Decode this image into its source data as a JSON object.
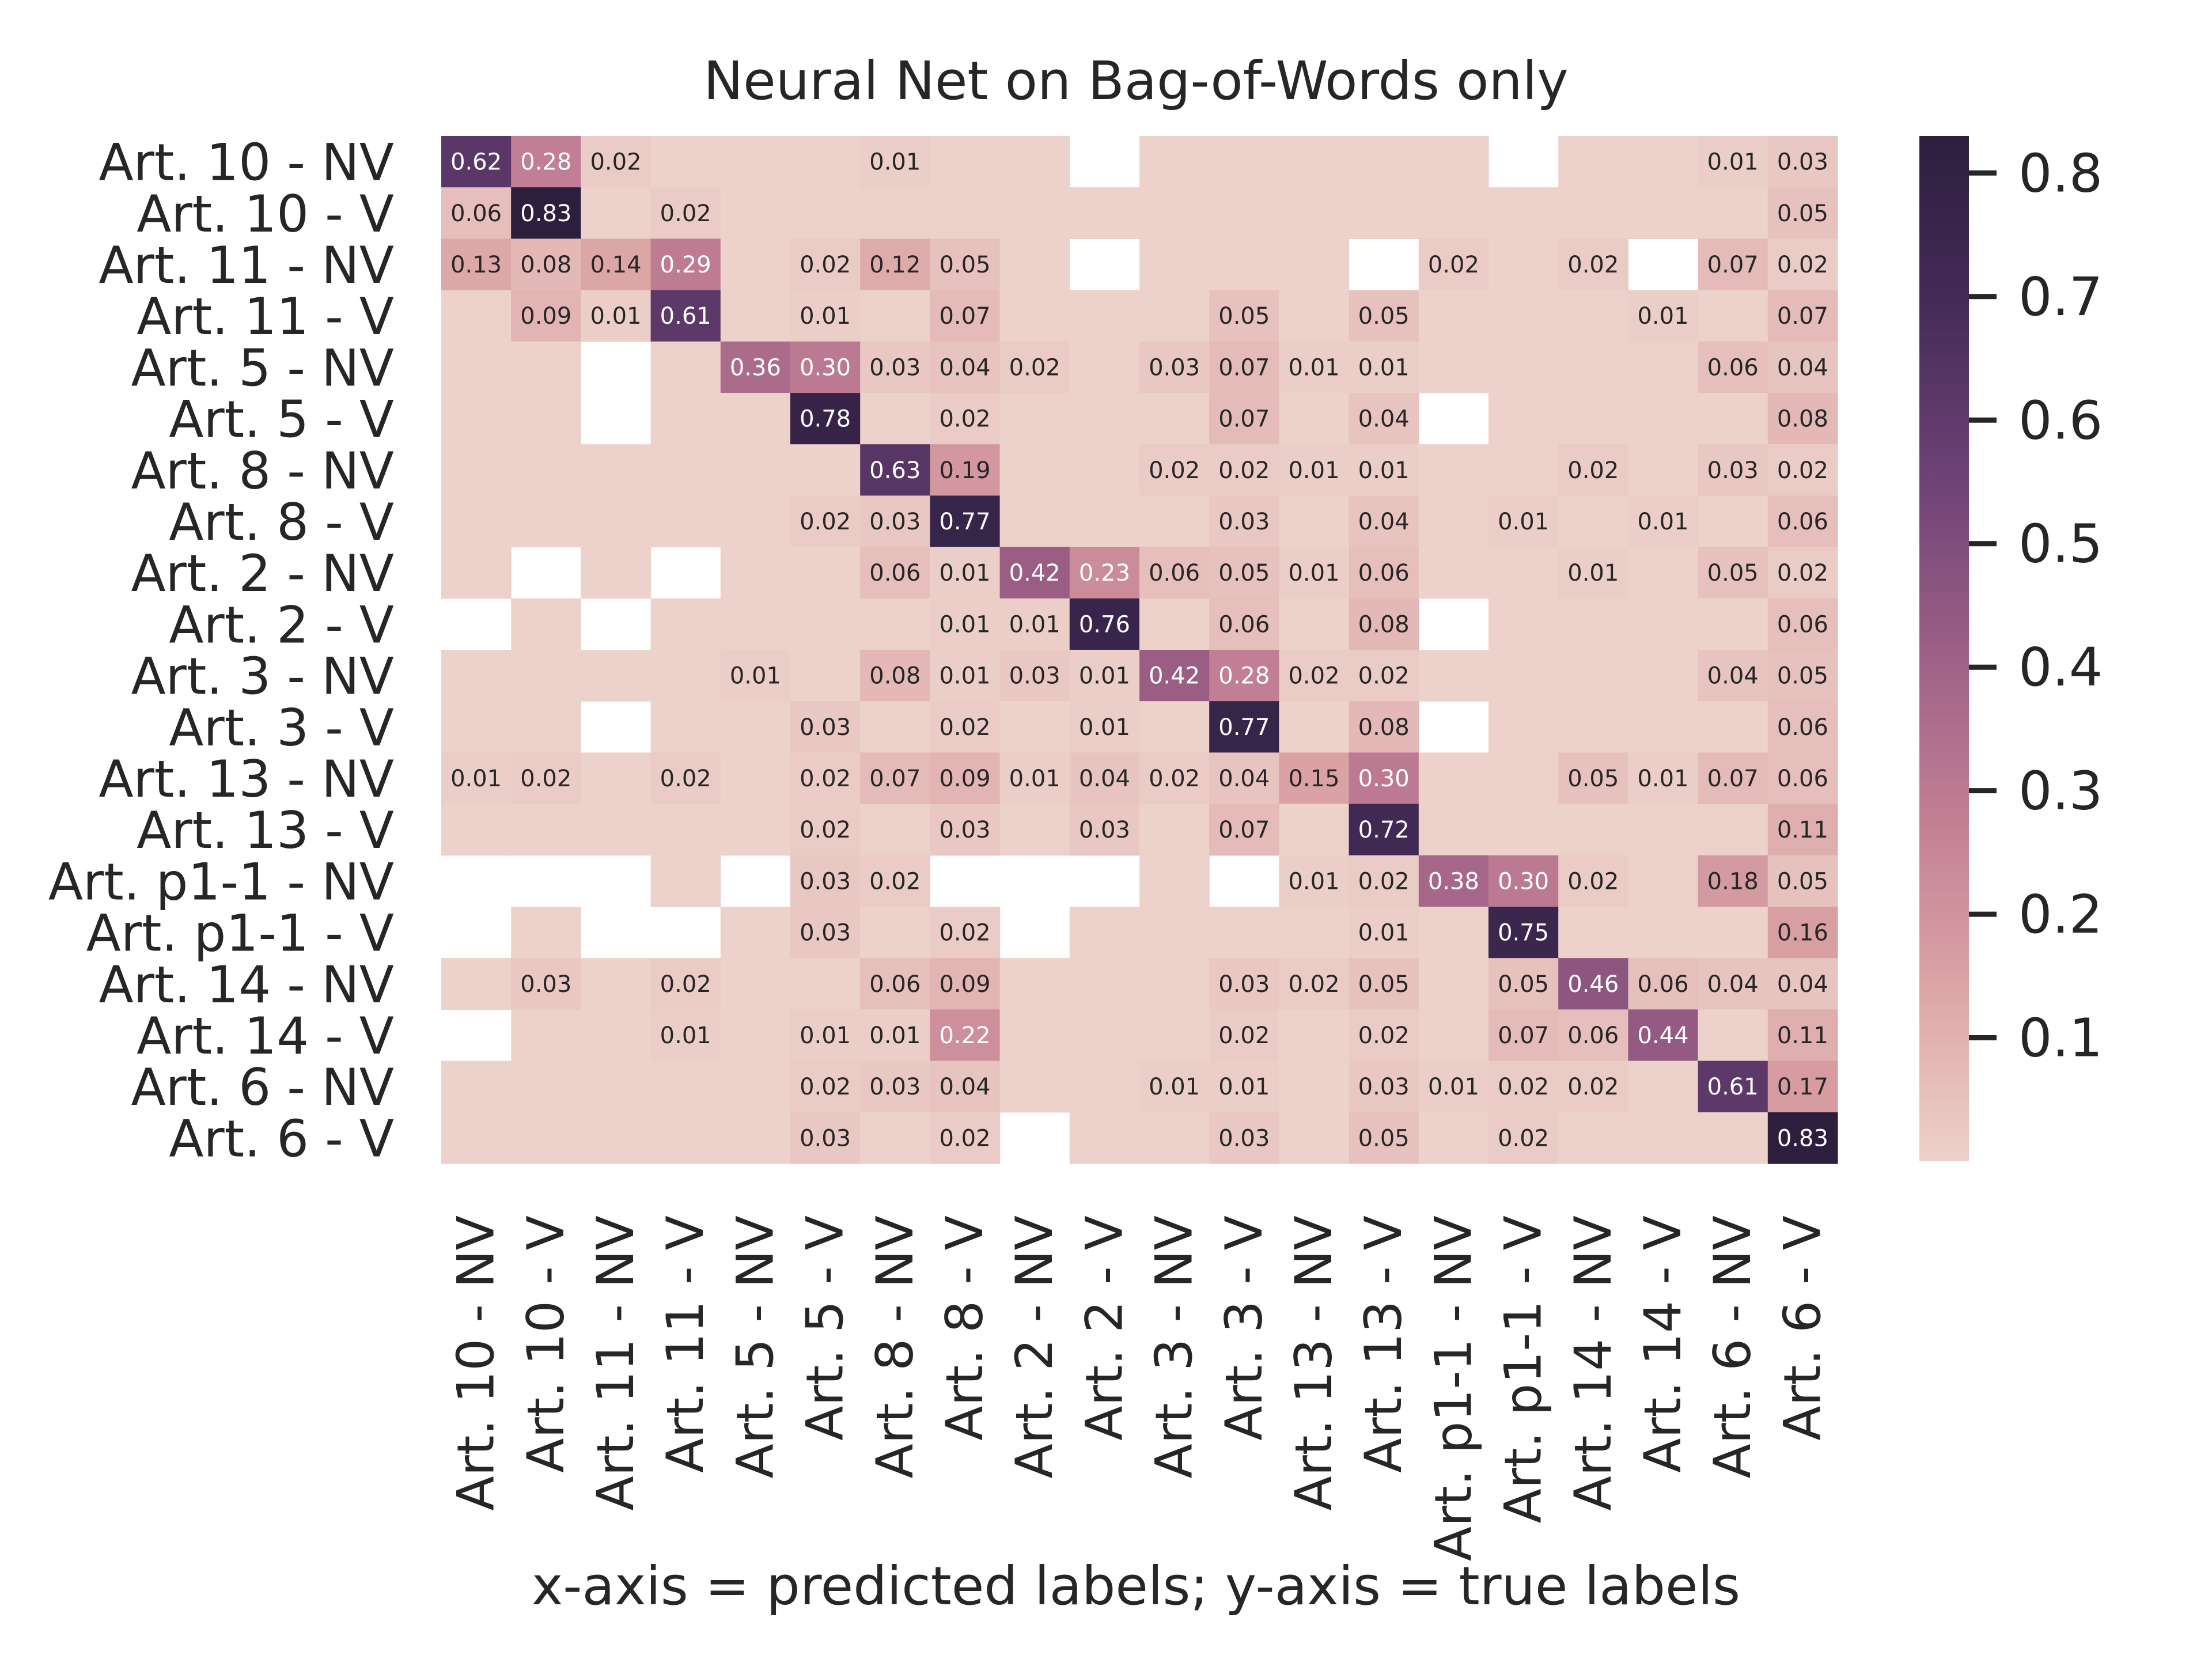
{
  "chart_data": {
    "type": "heatmap",
    "title": "Neural Net on Bag-of-Words only",
    "xlabel": "x-axis = predicted labels; y-axis = true labels",
    "ylabel": "",
    "labels": [
      "Art. 10 - NV",
      "Art. 10 - V",
      "Art. 11 - NV",
      "Art. 11 - V",
      "Art. 5 - NV",
      "Art. 5 - V",
      "Art. 8 - NV",
      "Art. 8 - V",
      "Art. 2 - NV",
      "Art. 2 - V",
      "Art. 3 - NV",
      "Art. 3 - V",
      "Art. 13 - NV",
      "Art. 13 - V",
      "Art. p1-1 - NV",
      "Art. p1-1 - V",
      "Art. 14 - NV",
      "Art. 14 - V",
      "Art. 6 - NV",
      "Art. 6 - V"
    ],
    "values": [
      [
        0.62,
        0.28,
        0.02,
        0,
        0,
        0,
        0.01,
        0,
        0,
        null,
        0,
        0,
        0,
        0,
        0,
        null,
        0,
        0,
        0.01,
        0.03
      ],
      [
        0.06,
        0.83,
        0,
        0.02,
        0,
        0,
        0,
        0,
        0,
        0,
        0,
        0,
        0,
        0,
        0,
        0,
        0,
        0,
        0,
        0.05
      ],
      [
        0.13,
        0.08,
        0.14,
        0.29,
        0,
        0.02,
        0.12,
        0.05,
        0,
        null,
        0,
        0,
        0,
        null,
        0.02,
        0,
        0.02,
        null,
        0.07,
        0.02
      ],
      [
        0,
        0.09,
        0.01,
        0.61,
        0,
        0.01,
        0,
        0.07,
        0,
        0,
        0,
        0.05,
        0,
        0.05,
        0,
        0,
        0,
        0.01,
        0,
        0.07
      ],
      [
        0,
        0,
        null,
        0,
        0.36,
        0.3,
        0.03,
        0.04,
        0.02,
        0,
        0.03,
        0.07,
        0.01,
        0.01,
        0,
        0,
        0,
        0,
        0.06,
        0.04
      ],
      [
        0,
        0,
        null,
        0,
        0,
        0.78,
        0,
        0.02,
        0,
        0,
        0,
        0.07,
        0,
        0.04,
        null,
        0,
        0,
        0,
        0,
        0.08
      ],
      [
        0,
        0,
        0,
        0,
        0,
        0,
        0.63,
        0.19,
        0,
        0,
        0.02,
        0.02,
        0.01,
        0.01,
        0,
        0,
        0.02,
        0,
        0.03,
        0.02
      ],
      [
        0,
        0,
        0,
        0,
        0,
        0.02,
        0.03,
        0.77,
        0,
        0,
        0,
        0.03,
        0,
        0.04,
        0,
        0.01,
        0,
        0.01,
        0,
        0.06
      ],
      [
        0,
        null,
        0,
        null,
        0,
        0,
        0.06,
        0.01,
        0.42,
        0.23,
        0.06,
        0.05,
        0.01,
        0.06,
        0,
        0,
        0.01,
        0,
        0.05,
        0.02
      ],
      [
        null,
        0,
        null,
        0,
        0,
        0,
        0,
        0.01,
        0.01,
        0.76,
        0,
        0.06,
        0,
        0.08,
        null,
        0,
        0,
        0,
        0,
        0.06
      ],
      [
        0,
        0,
        0,
        0,
        0.01,
        0,
        0.08,
        0.01,
        0.03,
        0.01,
        0.42,
        0.28,
        0.02,
        0.02,
        0,
        0,
        0,
        0,
        0.04,
        0.05
      ],
      [
        0,
        0,
        null,
        0,
        0,
        0.03,
        0,
        0.02,
        0,
        0.01,
        0,
        0.77,
        0,
        0.08,
        null,
        0,
        0,
        0,
        0,
        0.06
      ],
      [
        0.01,
        0.02,
        0,
        0.02,
        0,
        0.02,
        0.07,
        0.09,
        0.01,
        0.04,
        0.02,
        0.04,
        0.15,
        0.3,
        0,
        0,
        0.05,
        0.01,
        0.07,
        0.06
      ],
      [
        0,
        0,
        0,
        0,
        0,
        0.02,
        0,
        0.03,
        0,
        0.03,
        0,
        0.07,
        0,
        0.72,
        0,
        0,
        0,
        0,
        0,
        0.11
      ],
      [
        null,
        null,
        null,
        0,
        null,
        0.03,
        0.02,
        null,
        null,
        null,
        0,
        null,
        0.01,
        0.02,
        0.38,
        0.3,
        0.02,
        0,
        0.18,
        0.05
      ],
      [
        null,
        0,
        null,
        null,
        0,
        0.03,
        0,
        0.02,
        null,
        0,
        0,
        0,
        0,
        0.01,
        0,
        0.75,
        0,
        0,
        0,
        0.16
      ],
      [
        0,
        0.03,
        0,
        0.02,
        0,
        0,
        0.06,
        0.09,
        0,
        0,
        0,
        0.03,
        0.02,
        0.05,
        0,
        0.05,
        0.46,
        0.06,
        0.04,
        0.04
      ],
      [
        null,
        0,
        0,
        0.01,
        0,
        0.01,
        0.01,
        0.22,
        0,
        0,
        0,
        0.02,
        0,
        0.02,
        0,
        0.07,
        0.06,
        0.44,
        0,
        0.11
      ],
      [
        0,
        0,
        0,
        0,
        0,
        0.02,
        0.03,
        0.04,
        0,
        0,
        0.01,
        0.01,
        0,
        0.03,
        0.01,
        0.02,
        0.02,
        0,
        0.61,
        0.17
      ],
      [
        0,
        0,
        0,
        0,
        0,
        0.03,
        0,
        0.02,
        null,
        0,
        0,
        0.03,
        0,
        0.05,
        0,
        0.02,
        0,
        0,
        0,
        0.83
      ]
    ],
    "colorbar": {
      "ticks": [
        0.1,
        0.2,
        0.3,
        0.4,
        0.5,
        0.6,
        0.7,
        0.8
      ],
      "range": [
        0.0,
        0.83
      ],
      "colors": [
        "#edd1cb",
        "#dca5a6",
        "#c27f94",
        "#9c5f86",
        "#6e4276",
        "#452c58",
        "#2d1e3e"
      ]
    },
    "legend": "colorbar right"
  }
}
